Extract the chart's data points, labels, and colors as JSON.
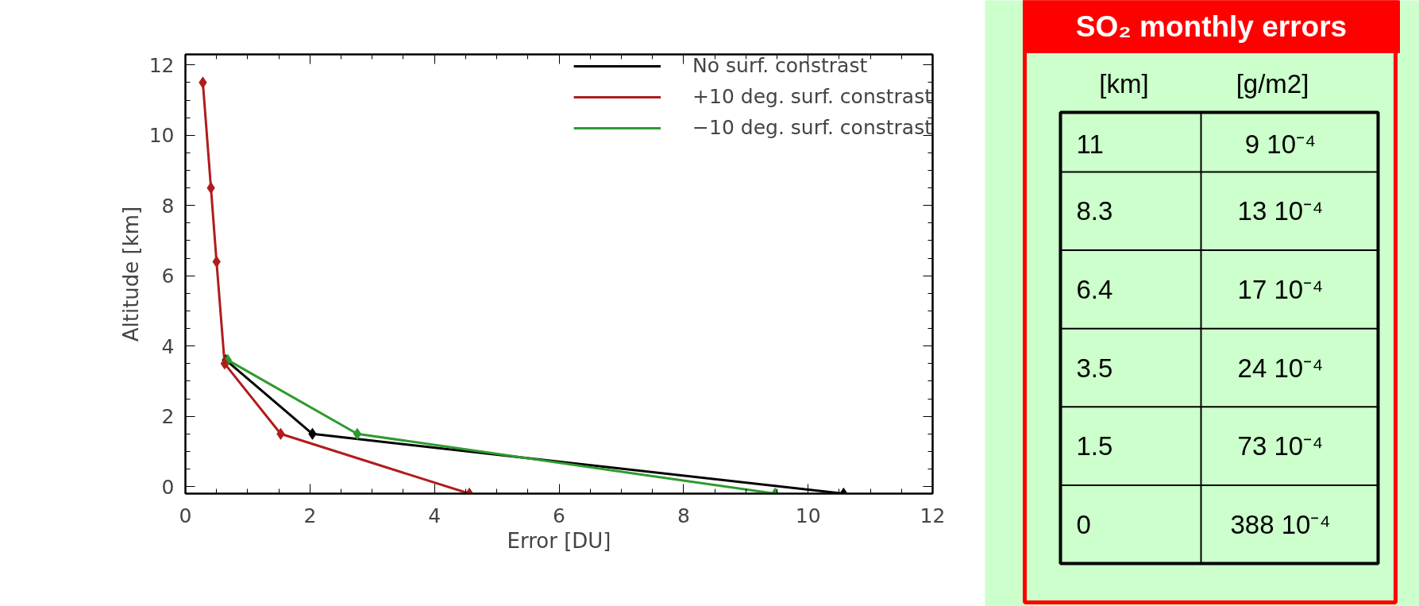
{
  "chart_data": [
    {
      "type": "line",
      "xlabel": "Error [DU]",
      "ylabel": "Altitude [km]",
      "xlim": [
        0,
        12
      ],
      "ylim": [
        -0.2,
        12.3
      ],
      "xticks": [
        0,
        2,
        4,
        6,
        8,
        10,
        12
      ],
      "yticks": [
        0,
        2,
        4,
        6,
        8,
        10,
        12
      ],
      "grid": false,
      "legend": "top right",
      "marker": "diamond",
      "line_style": "solid",
      "series": [
        {
          "name": "No surf. constrast",
          "color": "#000000",
          "x": [
            0.65,
            2.04,
            10.57
          ],
          "values": [
            3.6,
            1.5,
            -0.2
          ]
        },
        {
          "name": "+10 deg. surf. constrast",
          "color": "#b01c1c",
          "x": [
            0.28,
            0.41,
            0.5,
            0.63,
            1.53,
            4.56
          ],
          "values": [
            11.5,
            8.5,
            6.4,
            3.5,
            1.5,
            -0.2
          ]
        },
        {
          "name": "−10 deg. surf. constrast",
          "color": "#2e9a2e",
          "x": [
            0.68,
            2.76,
            9.47
          ],
          "values": [
            3.6,
            1.5,
            -0.2
          ]
        }
      ]
    },
    {
      "type": "other",
      "title": "SO₂ monthly errors",
      "annotations": [
        "[km]",
        "[g/m2]",
        "11",
        "9 10⁻⁴",
        "8.3",
        "13 10⁻⁴",
        "6.4",
        "17 10⁻⁴",
        "3.5",
        "24 10⁻⁴",
        "1.5",
        "73 10⁻⁴",
        "0",
        "388 10⁻⁴"
      ]
    }
  ]
}
